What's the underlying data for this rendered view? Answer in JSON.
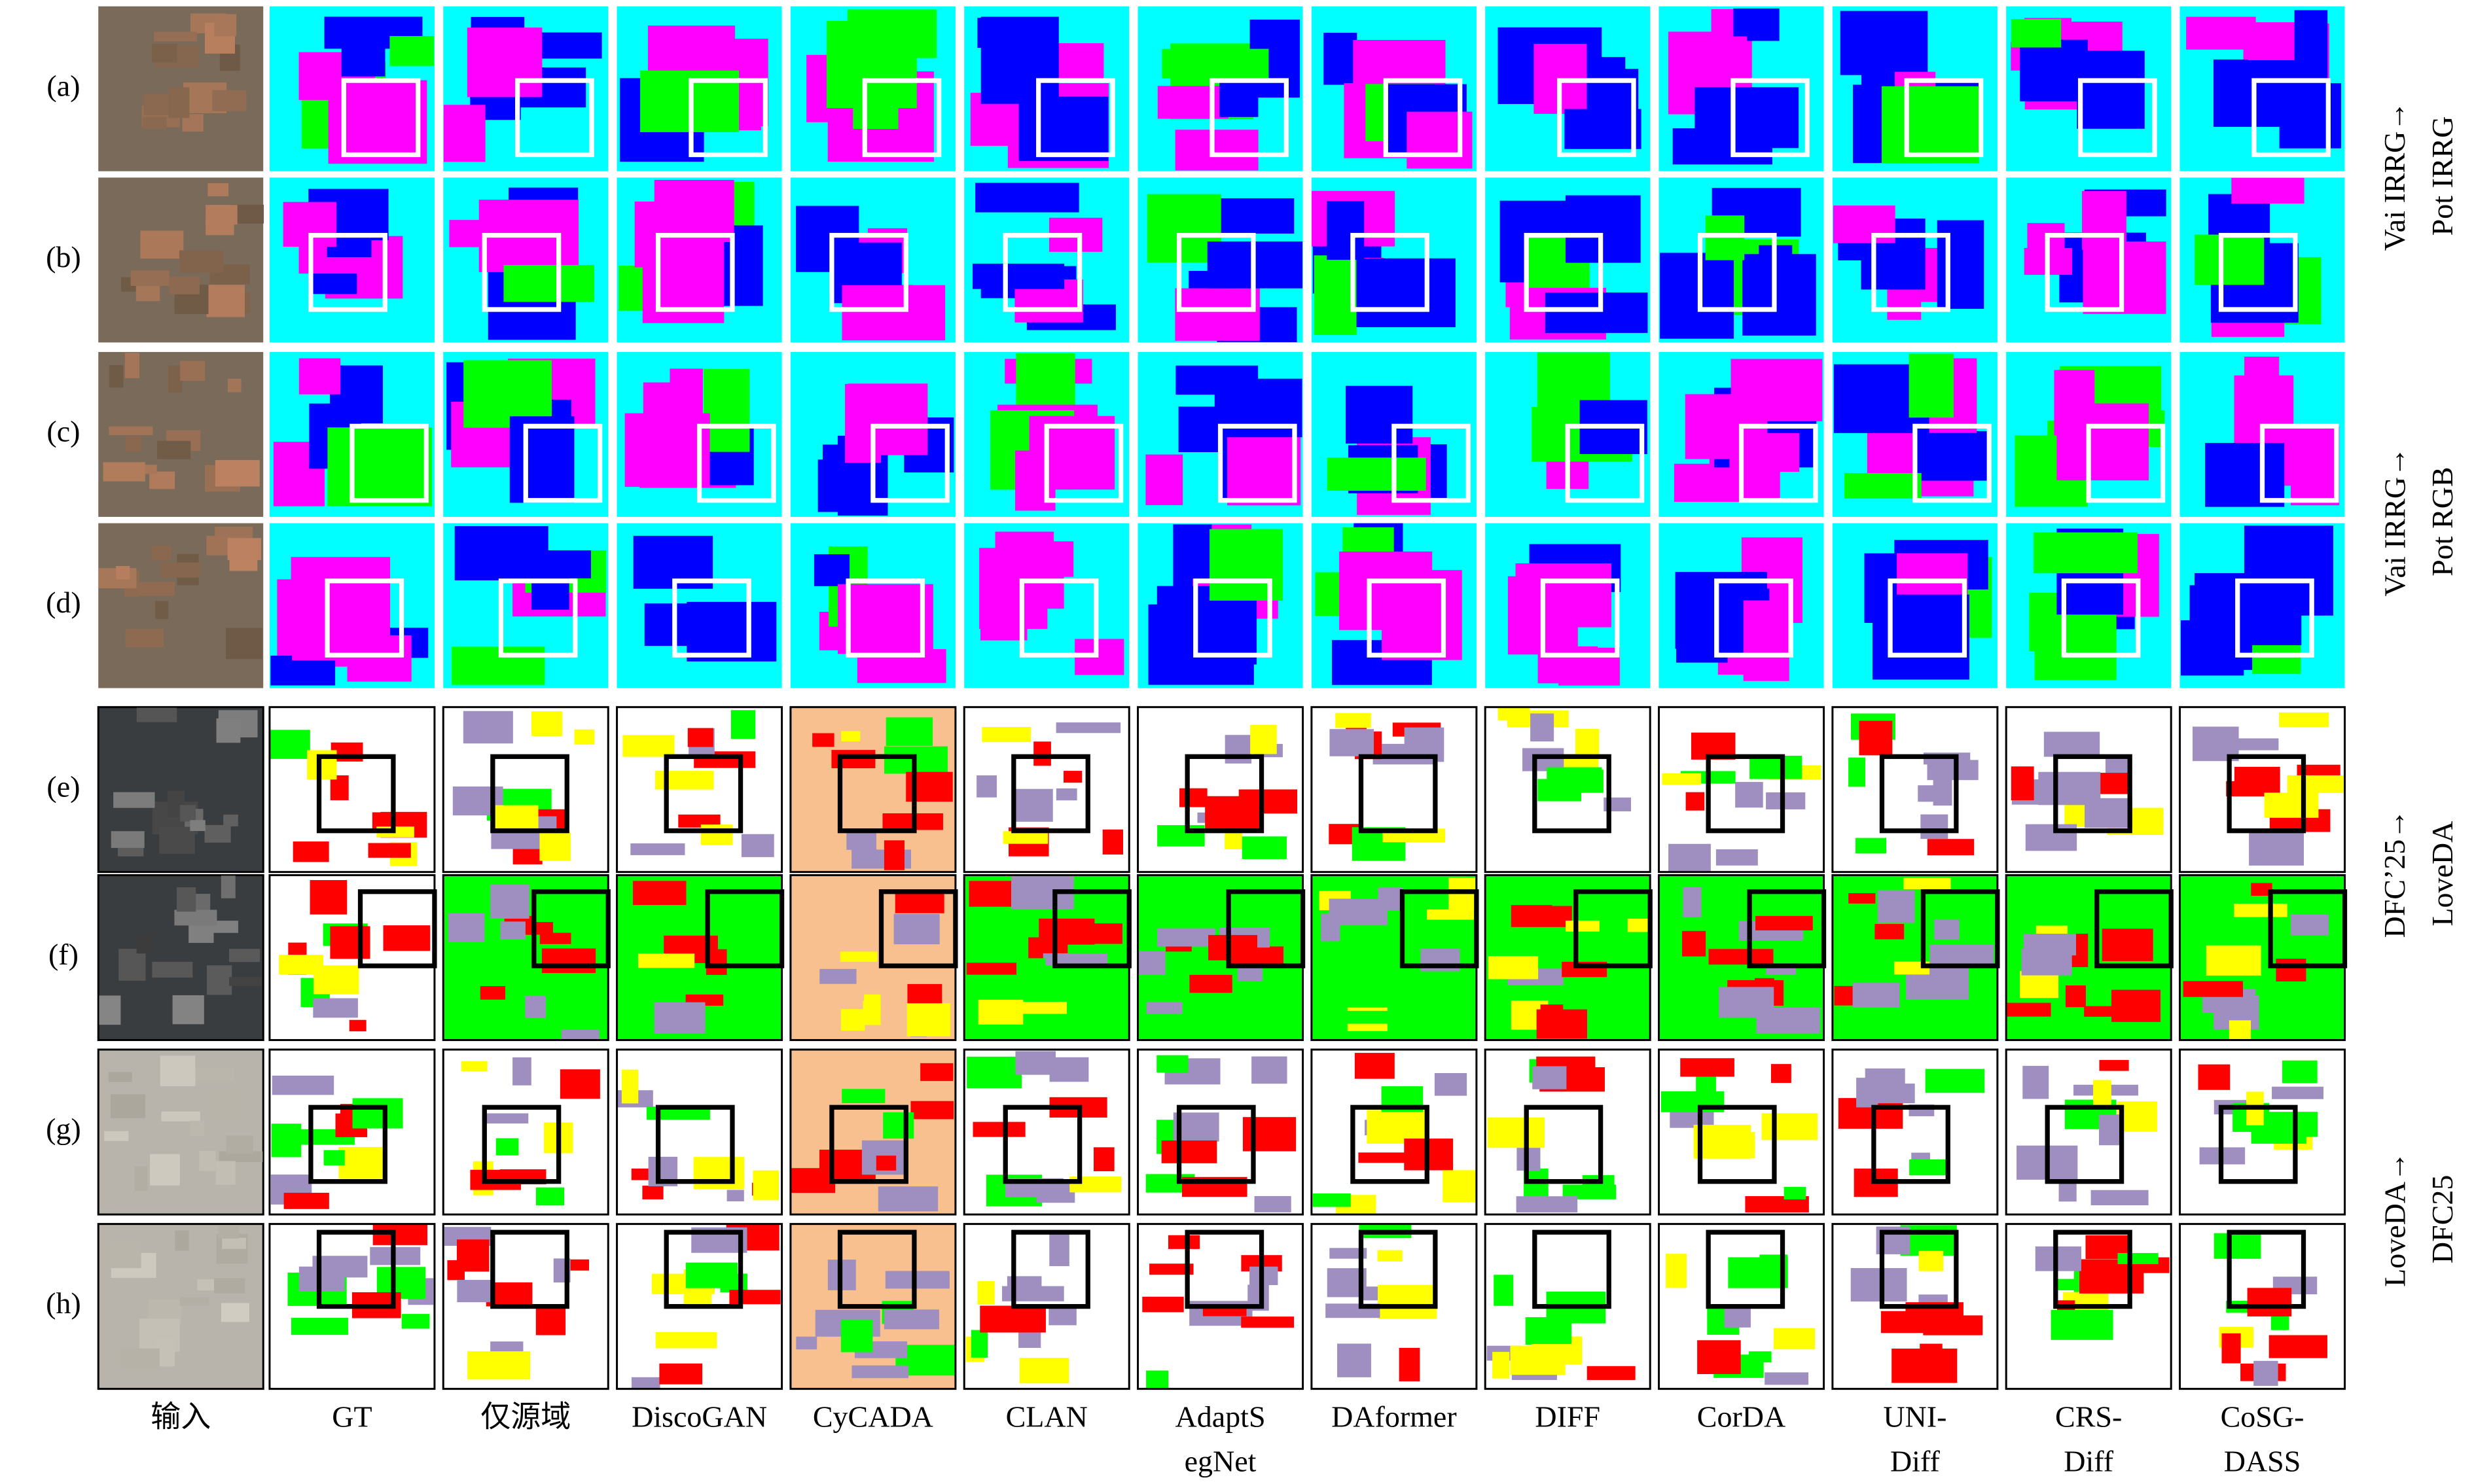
{
  "row_labels": [
    "(a)",
    "(b)",
    "(c)",
    "(d)",
    "(e)",
    "(f)",
    "(g)",
    "(h)"
  ],
  "columns": [
    [
      "输入"
    ],
    [
      "GT"
    ],
    [
      "仅源域"
    ],
    [
      "DiscoGAN"
    ],
    [
      "CyCADA"
    ],
    [
      "CLAN"
    ],
    [
      "AdaptS",
      "egNet"
    ],
    [
      "DAformer"
    ],
    [
      "DIFF"
    ],
    [
      "CorDA"
    ],
    [
      "UNI-",
      "Diff"
    ],
    [
      "CRS-",
      "Diff"
    ],
    [
      "CoSG-",
      "DASS"
    ]
  ],
  "groups": [
    [
      "Vai IRRG→",
      "Pot IRRG"
    ],
    [
      "Vai IRRG→",
      "Pot RGB"
    ],
    [
      "DFC’25→",
      "LoveDA"
    ],
    [
      "LoveDA→",
      "DFC25"
    ]
  ]
}
